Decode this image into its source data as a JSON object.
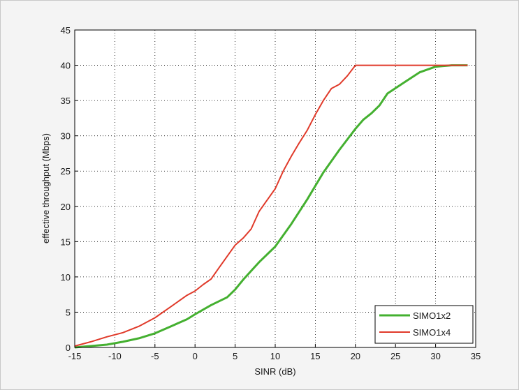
{
  "chart_data": {
    "type": "line",
    "xlabel": "SINR (dB)",
    "ylabel": "effective throughput (Mbps)",
    "xlim": [
      -15,
      35
    ],
    "ylim": [
      0,
      45
    ],
    "xticks": [
      -15,
      -10,
      -5,
      0,
      5,
      10,
      15,
      20,
      25,
      30,
      35
    ],
    "yticks": [
      0,
      5,
      10,
      15,
      20,
      25,
      30,
      35,
      40,
      45
    ],
    "grid": true,
    "legend_position": "bottom-right",
    "series": [
      {
        "name": "SIMO1x2",
        "color": "#44b030",
        "points": [
          [
            -15,
            0
          ],
          [
            -13,
            0.2
          ],
          [
            -11,
            0.4
          ],
          [
            -9,
            0.8
          ],
          [
            -7,
            1.3
          ],
          [
            -5,
            2.0
          ],
          [
            -3,
            3.0
          ],
          [
            -1,
            4.0
          ],
          [
            0,
            4.7
          ],
          [
            2,
            6.0
          ],
          [
            4,
            7.1
          ],
          [
            5,
            8.2
          ],
          [
            6,
            9.6
          ],
          [
            8,
            12.1
          ],
          [
            10,
            14.3
          ],
          [
            12,
            17.5
          ],
          [
            14,
            21.0
          ],
          [
            16,
            24.8
          ],
          [
            18,
            28.0
          ],
          [
            20,
            31.0
          ],
          [
            21,
            32.3
          ],
          [
            22,
            33.2
          ],
          [
            23,
            34.3
          ],
          [
            24,
            36.0
          ],
          [
            26,
            37.5
          ],
          [
            28,
            39.0
          ],
          [
            30,
            39.8
          ],
          [
            32,
            40
          ],
          [
            34,
            40
          ]
        ]
      },
      {
        "name": "SIMO1x4",
        "color": "#e03a2a",
        "points": [
          [
            -15,
            0.2
          ],
          [
            -13,
            0.8
          ],
          [
            -11,
            1.5
          ],
          [
            -9,
            2.1
          ],
          [
            -7,
            3.0
          ],
          [
            -5,
            4.2
          ],
          [
            -3,
            5.8
          ],
          [
            -1,
            7.4
          ],
          [
            0,
            8.0
          ],
          [
            1,
            8.9
          ],
          [
            2,
            9.7
          ],
          [
            3,
            11.3
          ],
          [
            4,
            12.9
          ],
          [
            5,
            14.5
          ],
          [
            6,
            15.5
          ],
          [
            7,
            16.8
          ],
          [
            8,
            19.3
          ],
          [
            10,
            22.5
          ],
          [
            11,
            25.0
          ],
          [
            12,
            27.1
          ],
          [
            13,
            29.0
          ],
          [
            14,
            30.8
          ],
          [
            15,
            33.0
          ],
          [
            16,
            35.0
          ],
          [
            17,
            36.7
          ],
          [
            18,
            37.3
          ],
          [
            19,
            38.5
          ],
          [
            20,
            40
          ],
          [
            22,
            40
          ],
          [
            24,
            40
          ],
          [
            34,
            40
          ]
        ]
      }
    ]
  }
}
